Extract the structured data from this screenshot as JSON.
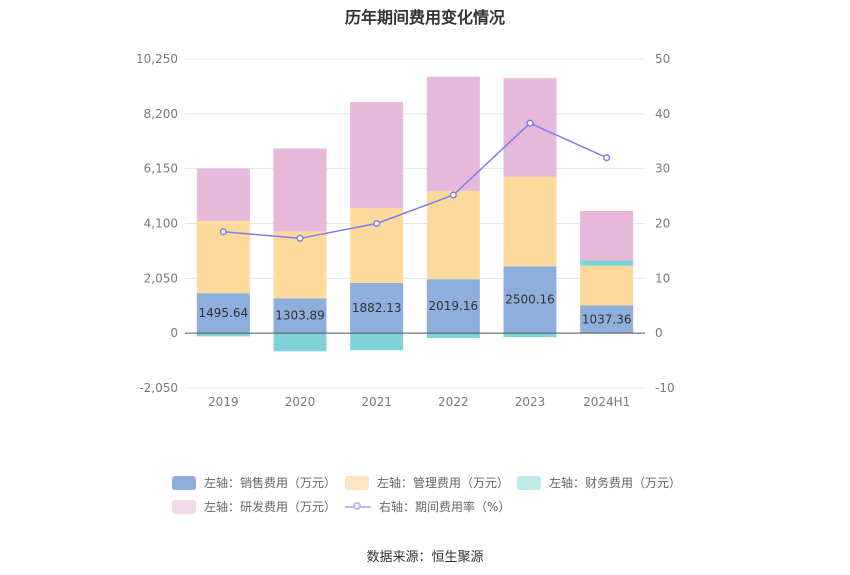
{
  "title": "历年期间费用变化情况",
  "source": "数据来源：恒生聚源",
  "colors": {
    "sales": "#8eaedb",
    "admin": "#fdd99b",
    "finance": "#7fd3d6",
    "rd": "#e6b8d9",
    "rate": "#7b7ef0"
  },
  "legend": [
    {
      "key": "sales",
      "label": "左轴：销售费用（万元）",
      "icon": "rect"
    },
    {
      "key": "admin",
      "label": "左轴：管理费用（万元）",
      "icon": "rect"
    },
    {
      "key": "finance",
      "label": "左轴：财务费用（万元）",
      "icon": "rect"
    },
    {
      "key": "rd",
      "label": "左轴：研发费用（万元）",
      "icon": "rect"
    },
    {
      "key": "rate",
      "label": "右轴：期间费用率（%）",
      "icon": "line"
    }
  ],
  "chart_data": {
    "type": "bar",
    "stacked": true,
    "categories": [
      "2019",
      "2020",
      "2021",
      "2022",
      "2023",
      "2024H1"
    ],
    "left_axis": {
      "ticks": [
        "-2,050",
        "0",
        "2,050",
        "4,100",
        "6,150",
        "8,200",
        "10,250"
      ],
      "range": [
        -2050,
        10250
      ]
    },
    "right_axis": {
      "ticks": [
        "-10",
        "0",
        "10",
        "20",
        "30",
        "40",
        "50"
      ],
      "range": [
        -10,
        50
      ]
    },
    "series": [
      {
        "name": "左轴：销售费用（万元）",
        "key": "sales",
        "axis": "left",
        "values": [
          1495.64,
          1303.89,
          1882.13,
          2019.16,
          2500.16,
          1037.36
        ],
        "labels": [
          "1495.64",
          "1303.89",
          "1882.13",
          "2019.16",
          "2500.16",
          "1037.36"
        ]
      },
      {
        "name": "左轴：管理费用（万元）",
        "key": "admin",
        "axis": "left",
        "values": [
          2700,
          2500,
          2800,
          3300,
          3350,
          1480
        ]
      },
      {
        "name": "左轴：财务费用（万元）",
        "key": "finance",
        "axis": "left",
        "values": [
          -120,
          -680,
          -640,
          -180,
          -150,
          200
        ]
      },
      {
        "name": "左轴：研发费用（万元）",
        "key": "rd",
        "axis": "left",
        "values": [
          1960,
          3100,
          3960,
          4270,
          3680,
          1850
        ]
      },
      {
        "name": "右轴：期间费用率（%）",
        "key": "rate",
        "axis": "right",
        "type": "line",
        "values": [
          18.5,
          17.3,
          20.0,
          25.2,
          38.3,
          32.0
        ]
      }
    ],
    "grid": true,
    "legend_position": "bottom"
  }
}
